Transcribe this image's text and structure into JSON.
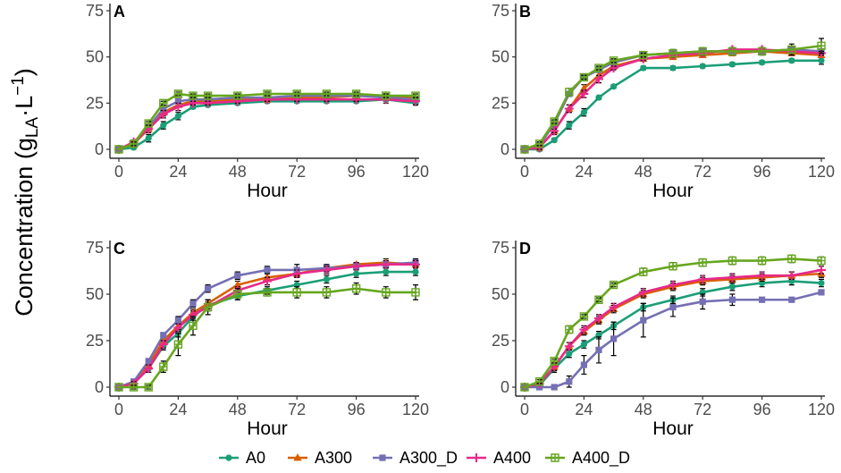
{
  "chart_data": {
    "type": "line",
    "ylabel_parts": {
      "main": "Concentration (g",
      "sub": "LA",
      "mid": "·L",
      "sup": "−1",
      "end": ")"
    },
    "xlabel": "Hour",
    "x_ticks": [
      0,
      24,
      48,
      72,
      96,
      120
    ],
    "y_ticks": [
      0,
      25,
      50,
      75
    ],
    "xlim": [
      0,
      120
    ],
    "ylim": [
      0,
      75
    ],
    "series_meta": [
      {
        "name": "A0",
        "color": "#1b9e77",
        "marker": "circle"
      },
      {
        "name": "A300",
        "color": "#d95f02",
        "marker": "triangle"
      },
      {
        "name": "A300_D",
        "color": "#7570b3",
        "marker": "square"
      },
      {
        "name": "A400",
        "color": "#e7298a",
        "marker": "plus"
      },
      {
        "name": "A400_D",
        "color": "#66a61e",
        "marker": "boxplus"
      }
    ],
    "x": [
      0,
      6,
      12,
      18,
      24,
      30,
      36,
      48,
      60,
      72,
      84,
      96,
      108,
      120
    ],
    "panels": [
      {
        "label": "A",
        "series": [
          {
            "name": "A0",
            "values": [
              0,
              1,
              6,
              13,
              18,
              23,
              24,
              25,
              26,
              26,
              26,
              26,
              27,
              25
            ],
            "err": [
              0,
              1,
              2,
              2,
              2,
              1,
              1,
              1,
              1,
              1,
              1,
              1,
              1,
              1
            ]
          },
          {
            "name": "A300",
            "values": [
              0,
              3,
              11,
              20,
              24,
              26,
              26,
              27,
              27,
              28,
              28,
              29,
              29,
              28
            ],
            "err": [
              0,
              1,
              1,
              2,
              1,
              1,
              1,
              1,
              1,
              1,
              1,
              1,
              1,
              1
            ]
          },
          {
            "name": "A300_D",
            "values": [
              0,
              3,
              12,
              22,
              26,
              27,
              27,
              28,
              28,
              29,
              29,
              29,
              28,
              27
            ],
            "err": [
              0,
              1,
              1,
              1,
              1,
              1,
              1,
              1,
              1,
              1,
              1,
              1,
              1,
              1
            ]
          },
          {
            "name": "A400",
            "values": [
              0,
              4,
              11,
              19,
              23,
              25,
              25,
              26,
              27,
              27,
              27,
              27,
              27,
              26
            ],
            "err": [
              0,
              1,
              2,
              2,
              2,
              1,
              1,
              1,
              1,
              1,
              1,
              1,
              2,
              2
            ]
          },
          {
            "name": "A400_D",
            "values": [
              0,
              3,
              14,
              25,
              30,
              29,
              29,
              29,
              30,
              30,
              30,
              30,
              29,
              29
            ],
            "err": [
              0,
              1,
              1,
              1,
              1,
              1,
              1,
              1,
              1,
              1,
              1,
              1,
              1,
              1
            ]
          }
        ]
      },
      {
        "label": "B",
        "series": [
          {
            "name": "A0",
            "values": [
              0,
              0,
              5,
              13,
              20,
              28,
              34,
              44,
              44,
              45,
              46,
              47,
              48,
              48
            ],
            "err": [
              0,
              1,
              1,
              2,
              2,
              1,
              1,
              1,
              1,
              1,
              1,
              1,
              1,
              2
            ]
          },
          {
            "name": "A300",
            "values": [
              0,
              1,
              10,
              22,
              33,
              40,
              45,
              49,
              50,
              51,
              52,
              53,
              52,
              51
            ],
            "err": [
              0,
              1,
              2,
              2,
              2,
              2,
              1,
              1,
              1,
              1,
              1,
              1,
              1,
              1
            ]
          },
          {
            "name": "A300_D",
            "values": [
              0,
              2,
              14,
              30,
              39,
              43,
              47,
              51,
              52,
              53,
              53,
              53,
              54,
              53
            ],
            "err": [
              0,
              1,
              1,
              1,
              1,
              1,
              1,
              1,
              1,
              1,
              1,
              1,
              1,
              1
            ]
          },
          {
            "name": "A400",
            "values": [
              0,
              1,
              10,
              22,
              30,
              38,
              44,
              49,
              51,
              52,
              54,
              54,
              53,
              52
            ],
            "err": [
              0,
              1,
              1,
              2,
              2,
              2,
              1,
              1,
              1,
              1,
              1,
              1,
              1,
              1
            ]
          },
          {
            "name": "A400_D",
            "values": [
              0,
              3,
              15,
              31,
              39,
              44,
              48,
              51,
              52,
              53,
              53,
              53,
              54,
              56
            ],
            "err": [
              0,
              1,
              1,
              2,
              1,
              1,
              1,
              1,
              2,
              2,
              2,
              2,
              3,
              4
            ]
          }
        ]
      },
      {
        "label": "C",
        "series": [
          {
            "name": "A0",
            "values": [
              0,
              2,
              10,
              22,
              29,
              38,
              44,
              49,
              52,
              55,
              58,
              61,
              62,
              62
            ],
            "err": [
              0,
              1,
              2,
              2,
              2,
              2,
              2,
              2,
              2,
              2,
              2,
              2,
              2,
              2
            ]
          },
          {
            "name": "A300",
            "values": [
              0,
              2,
              12,
              25,
              33,
              40,
              45,
              55,
              59,
              61,
              64,
              66,
              67,
              66
            ],
            "err": [
              0,
              1,
              1,
              2,
              2,
              2,
              2,
              2,
              2,
              2,
              1,
              1,
              2,
              2
            ]
          },
          {
            "name": "A300_D",
            "values": [
              0,
              3,
              14,
              28,
              36,
              45,
              53,
              60,
              63,
              63,
              64,
              65,
              66,
              67
            ],
            "err": [
              0,
              1,
              1,
              1,
              2,
              2,
              2,
              2,
              2,
              3,
              2,
              2,
              2,
              2
            ]
          },
          {
            "name": "A400",
            "values": [
              0,
              2,
              10,
              23,
              32,
              39,
              43,
              52,
              57,
              61,
              63,
              65,
              66,
              66
            ],
            "err": [
              0,
              1,
              2,
              2,
              2,
              2,
              2,
              2,
              2,
              2,
              2,
              2,
              2,
              2
            ]
          },
          {
            "name": "A400_D",
            "values": [
              0,
              0,
              0,
              11,
              23,
              33,
              43,
              50,
              51,
              51,
              51,
              53,
              51,
              51
            ],
            "err": [
              0,
              1,
              1,
              3,
              6,
              5,
              4,
              3,
              2,
              3,
              3,
              3,
              3,
              4
            ]
          }
        ]
      },
      {
        "label": "D",
        "series": [
          {
            "name": "A0",
            "values": [
              0,
              1,
              10,
              18,
              23,
              28,
              33,
              43,
              47,
              51,
              54,
              56,
              57,
              56
            ],
            "err": [
              0,
              1,
              2,
              2,
              2,
              2,
              2,
              2,
              2,
              2,
              2,
              2,
              2,
              2
            ]
          },
          {
            "name": "A300",
            "values": [
              0,
              2,
              11,
              22,
              30,
              36,
              42,
              50,
              54,
              57,
              58,
              59,
              60,
              61
            ],
            "err": [
              0,
              1,
              2,
              2,
              2,
              2,
              2,
              2,
              2,
              2,
              2,
              2,
              2,
              2
            ]
          },
          {
            "name": "A300_D",
            "values": [
              0,
              0,
              0,
              3,
              12,
              20,
              26,
              36,
              43,
              46,
              47,
              47,
              47,
              51
            ],
            "err": [
              0,
              1,
              1,
              3,
              5,
              7,
              9,
              9,
              5,
              4,
              3,
              1,
              1,
              1
            ]
          },
          {
            "name": "A400",
            "values": [
              0,
              2,
              11,
              22,
              31,
              37,
              43,
              51,
              55,
              58,
              59,
              60,
              60,
              63
            ],
            "err": [
              0,
              1,
              2,
              2,
              2,
              2,
              2,
              2,
              2,
              2,
              2,
              2,
              2,
              2
            ]
          },
          {
            "name": "A400_D",
            "values": [
              0,
              3,
              14,
              31,
              38,
              47,
              55,
              62,
              65,
              67,
              68,
              68,
              69,
              68
            ],
            "err": [
              0,
              1,
              1,
              2,
              1,
              1,
              1,
              2,
              2,
              2,
              2,
              2,
              2,
              2
            ]
          }
        ]
      }
    ]
  }
}
